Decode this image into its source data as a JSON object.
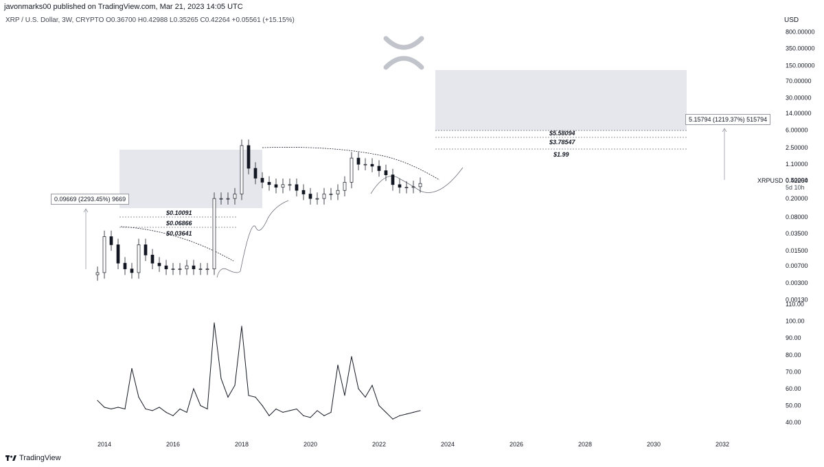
{
  "header": {
    "published_line": "javonmarks00 published on TradingView.com, Mar 21, 2023 14:05 UTC",
    "symbol_line": "XRP / U.S. Dollar, 3W, CRYPTO O0.36700 H0.42988 L0.35265 C0.42264 +0.05561 (+15.15%)",
    "currency": "USD"
  },
  "footer": {
    "brand": "TradingView"
  },
  "colors": {
    "candle": "#131722",
    "box_fill": "#e6e7ec",
    "line": "#131722",
    "arrow": "#9598a1"
  },
  "price_axis": {
    "ticks": [
      "800.00000",
      "350.00000",
      "150.00000",
      "70.00000",
      "30.00000",
      "14.00000",
      "6.00000",
      "2.50000",
      "1.10000",
      "0.50000",
      "0.20000",
      "0.08000",
      "0.03500",
      "0.01500",
      "0.00700",
      "0.00300",
      "0.00130"
    ],
    "ticker": "XRPUSD",
    "last_price": "0.42264",
    "countdown": "5d 10h"
  },
  "indicator_axis": {
    "ticks": [
      "110.00",
      "100.00",
      "90.00",
      "80.00",
      "70.00",
      "60.00",
      "50.00",
      "40.00"
    ]
  },
  "time_axis": {
    "ticks": [
      "2014",
      "2016",
      "2018",
      "2020",
      "2022",
      "2024",
      "2026",
      "2028",
      "2030",
      "2032"
    ]
  },
  "annotations": {
    "left_measure": "0.09669 (2293.45%) 9669",
    "right_measure": "5.15794 (1219.37%) 515794",
    "left_levels": [
      "$0.10091",
      "$0.06866",
      "$0.03641"
    ],
    "right_levels": [
      "$5.58094",
      "$3.78547",
      "$1.99"
    ]
  },
  "chart_data": {
    "type": "line",
    "series": [
      {
        "x": [
          2013.8,
          2014.0,
          2014.2,
          2014.4,
          2014.6,
          2014.8,
          2015.0,
          2015.2,
          2015.4,
          2015.6,
          2015.8,
          2016.0,
          2016.2,
          2016.4,
          2016.6,
          2016.8,
          2017.0,
          2017.2,
          2017.4,
          2017.6,
          2017.8,
          2018.0,
          2018.2,
          2018.4,
          2018.6,
          2018.8,
          2019.0,
          2019.2,
          2019.4,
          2019.6,
          2019.8,
          2020.0,
          2020.2,
          2020.4,
          2020.6,
          2020.8,
          2021.0,
          2021.2,
          2021.4,
          2021.6,
          2021.8,
          2022.0,
          2022.2,
          2022.4,
          2022.6,
          2022.8,
          2023.0,
          2023.2
        ],
        "values": [
          0.005,
          0.03,
          0.02,
          0.008,
          0.006,
          0.005,
          0.02,
          0.012,
          0.008,
          0.007,
          0.006,
          0.006,
          0.006,
          0.007,
          0.006,
          0.006,
          0.006,
          0.2,
          0.2,
          0.2,
          0.25,
          2.8,
          0.9,
          0.55,
          0.45,
          0.4,
          0.35,
          0.4,
          0.4,
          0.3,
          0.25,
          0.2,
          0.2,
          0.25,
          0.25,
          0.3,
          0.45,
          1.5,
          1.1,
          1.1,
          1.0,
          0.8,
          0.65,
          0.4,
          0.35,
          0.35,
          0.36,
          0.42264
        ]
      },
      {
        "x": [
          2013.8,
          2014.0,
          2014.2,
          2014.4,
          2014.6,
          2014.8,
          2015.0,
          2015.2,
          2015.4,
          2015.6,
          2015.8,
          2016.0,
          2016.2,
          2016.4,
          2016.6,
          2016.8,
          2017.0,
          2017.2,
          2017.4,
          2017.6,
          2017.8,
          2018.0,
          2018.2,
          2018.4,
          2018.6,
          2018.8,
          2019.0,
          2019.2,
          2019.4,
          2019.6,
          2019.8,
          2020.0,
          2020.2,
          2020.4,
          2020.6,
          2020.8,
          2021.0,
          2021.2,
          2021.4,
          2021.6,
          2021.8,
          2022.0,
          2022.2,
          2022.4,
          2022.6,
          2022.8,
          2023.0,
          2023.2
        ],
        "values": [
          53,
          49,
          48,
          49,
          48,
          72,
          55,
          48,
          47,
          49,
          46,
          44,
          48,
          46,
          60,
          50,
          48,
          99,
          66,
          55,
          62,
          97,
          56,
          55,
          50,
          44,
          48,
          46,
          47,
          48,
          44,
          43,
          47,
          44,
          46,
          74,
          56,
          79,
          60,
          55,
          62,
          50,
          46,
          42,
          44,
          45,
          46,
          47
        ]
      }
    ],
    "xlim": [
      2013.0,
      2033.0
    ],
    "price_ylim": [
      0.001,
      1000
    ],
    "indicator_ylim": [
      36,
      110
    ],
    "price_scale": "log",
    "legend": "none",
    "grid": false
  }
}
